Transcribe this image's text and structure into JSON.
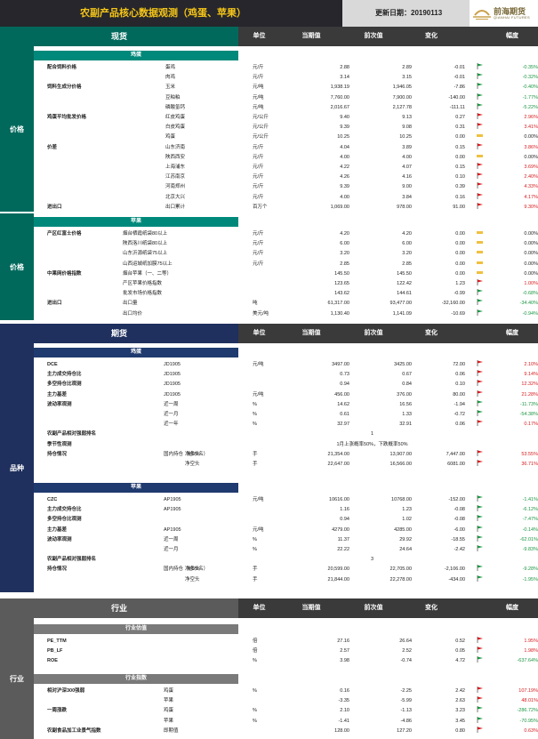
{
  "header": {
    "title": "农副产品核心数据观测（鸡蛋、苹果）",
    "date_label": "更新日期：",
    "date": "20190113",
    "logo_cn": "前海期货",
    "logo_en": "QIANHAI FUTURES"
  },
  "columns": {
    "unit": "单位",
    "current": "当期值",
    "previous": "前次值",
    "change": "变化",
    "pct": "幅度"
  },
  "colors": {
    "spot": "#00695c",
    "egg_band": "#00897b",
    "futures": "#1f2f5e",
    "fut_band": "#1f3a6e",
    "industry": "#5b5b5b",
    "ind_band": "#7a7a7a",
    "up": "#d7191c",
    "down": "#1a9641",
    "flat": "#f0c040"
  },
  "sections": {
    "spot": "现货",
    "futures": "期货",
    "industry": "行业"
  },
  "side": {
    "price1": "价格",
    "price2": "价格",
    "variety": "品种",
    "industry": "行业"
  },
  "bands": {
    "egg_spot": "鸡蛋",
    "apple_spot": "苹果",
    "egg_fut": "鸡蛋",
    "apple_fut": "苹果",
    "ind_val": "行业估值",
    "ind_idx": "行业指数"
  },
  "spot_egg": [
    {
      "label": "配合饲料价格",
      "sub": "蛋鸡",
      "unit": "元/斤",
      "cur": "2.88",
      "prev": "2.89",
      "chg": "-0.01",
      "pct": "-0.35%",
      "dir": "dn"
    },
    {
      "label": "",
      "sub": "肉鸡",
      "unit": "元/斤",
      "cur": "3.14",
      "prev": "3.15",
      "chg": "-0.01",
      "pct": "-0.32%",
      "dir": "dn"
    },
    {
      "label": "饲料生成分价格",
      "sub": "玉米",
      "unit": "元/吨",
      "cur": "1,938.19",
      "prev": "1,946.05",
      "chg": "-7.86",
      "pct": "-0.40%",
      "dir": "dn"
    },
    {
      "label": "",
      "sub": "豆粕粕",
      "unit": "元/吨",
      "cur": "7,760.00",
      "prev": "7,900.00",
      "chg": "-140.00",
      "pct": "-1.77%",
      "dir": "dn"
    },
    {
      "label": "",
      "sub": "磷酸氢钙",
      "unit": "元/吨",
      "cur": "2,016.67",
      "prev": "2,127.78",
      "chg": "-111.11",
      "pct": "-5.22%",
      "dir": "dn"
    },
    {
      "label": "鸡蛋平均批发价格",
      "sub": "红皮鸡蛋",
      "unit": "元/公斤",
      "cur": "9.40",
      "prev": "9.13",
      "chg": "0.27",
      "pct": "2.96%",
      "dir": "up"
    },
    {
      "label": "",
      "sub": "白皮鸡蛋",
      "unit": "元/公斤",
      "cur": "9.39",
      "prev": "9.08",
      "chg": "0.31",
      "pct": "3.41%",
      "dir": "up"
    },
    {
      "label": "",
      "sub": "鸡蛋",
      "unit": "元/公斤",
      "cur": "10.25",
      "prev": "10.25",
      "chg": "0.00",
      "pct": "0.00%",
      "dir": "fl"
    },
    {
      "label": "价差",
      "sub": "山东济南",
      "unit": "元/斤",
      "cur": "4.04",
      "prev": "3.89",
      "chg": "0.15",
      "pct": "3.86%",
      "dir": "up"
    },
    {
      "label": "",
      "sub": "陕西西安",
      "unit": "元/斤",
      "cur": "4.00",
      "prev": "4.00",
      "chg": "0.00",
      "pct": "0.00%",
      "dir": "fl"
    },
    {
      "label": "",
      "sub": "上海浦东",
      "unit": "元/斤",
      "cur": "4.22",
      "prev": "4.07",
      "chg": "0.15",
      "pct": "3.69%",
      "dir": "up"
    },
    {
      "label": "",
      "sub": "江苏南京",
      "unit": "元/斤",
      "cur": "4.26",
      "prev": "4.16",
      "chg": "0.10",
      "pct": "2.40%",
      "dir": "up"
    },
    {
      "label": "",
      "sub": "河南郑州",
      "unit": "元/斤",
      "cur": "9.39",
      "prev": "9.00",
      "chg": "0.39",
      "pct": "4.33%",
      "dir": "up"
    },
    {
      "label": "",
      "sub": "北京大兴",
      "unit": "元/斤",
      "cur": "4.00",
      "prev": "3.84",
      "chg": "0.16",
      "pct": "4.17%",
      "dir": "up"
    },
    {
      "label": "进出口",
      "sub": "出口累计",
      "unit": "百万个",
      "cur": "1,069.00",
      "prev": "978.00",
      "chg": "91.00",
      "pct": "9.30%",
      "dir": "up"
    }
  ],
  "spot_apple": [
    {
      "label": "产区红富士价格",
      "sub": "烟台栖霞纸袋80以上",
      "unit": "元/斤",
      "cur": "4.20",
      "prev": "4.20",
      "chg": "0.00",
      "pct": "0.00%",
      "dir": "fl"
    },
    {
      "label": "",
      "sub": "陕西洛川纸袋80以上",
      "unit": "元/斤",
      "cur": "6.00",
      "prev": "6.00",
      "chg": "0.00",
      "pct": "0.00%",
      "dir": "fl"
    },
    {
      "label": "",
      "sub": "山东沂源纸袋75以上",
      "unit": "元/斤",
      "cur": "3.20",
      "prev": "3.20",
      "chg": "0.00",
      "pct": "0.00%",
      "dir": "fl"
    },
    {
      "label": "",
      "sub": "山西运城纸加膜75以上",
      "unit": "元/斤",
      "cur": "2.85",
      "prev": "2.85",
      "chg": "0.00",
      "pct": "0.00%",
      "dir": "fl"
    },
    {
      "label": "中果网价格指数",
      "sub": "烟台苹果（一、二等）",
      "unit": "",
      "cur": "145.50",
      "prev": "145.50",
      "chg": "0.00",
      "pct": "0.00%",
      "dir": "fl"
    },
    {
      "label": "",
      "sub": "产区苹果价格指数",
      "unit": "",
      "cur": "123.65",
      "prev": "122.42",
      "chg": "1.23",
      "pct": "1.00%",
      "dir": "up"
    },
    {
      "label": "",
      "sub": "批发市场价格指数",
      "unit": "",
      "cur": "143.62",
      "prev": "144.61",
      "chg": "-0.99",
      "pct": "-0.68%",
      "dir": "dn"
    },
    {
      "label": "进出口",
      "sub": "出口量",
      "unit": "吨",
      "cur": "61,317.00",
      "prev": "93,477.00",
      "chg": "-32,160.00",
      "pct": "-34.40%",
      "dir": "dn"
    },
    {
      "label": "",
      "sub": "出口均价",
      "unit": "美元/吨",
      "cur": "1,130.40",
      "prev": "1,141.09",
      "chg": "-10.69",
      "pct": "-0.94%",
      "dir": "dn"
    }
  ],
  "fut_egg": [
    {
      "label": "DCE",
      "sub": "JD1905",
      "unit": "元/吨",
      "cur": "3497.00",
      "prev": "3425.00",
      "chg": "72.00",
      "pct": "2.10%",
      "dir": "up"
    },
    {
      "label": "主力成交持仓比",
      "sub": "JD1905",
      "unit": "",
      "cur": "0.73",
      "prev": "0.67",
      "chg": "0.06",
      "pct": "9.14%",
      "dir": "up"
    },
    {
      "label": "多空持仓比观测",
      "sub": "JD1905",
      "unit": "",
      "cur": "0.94",
      "prev": "0.84",
      "chg": "0.10",
      "pct": "12.32%",
      "dir": "up"
    },
    {
      "label": "主力基差",
      "sub": "JD1905",
      "unit": "元/吨",
      "cur": "456.00",
      "prev": "376.00",
      "chg": "80.00",
      "pct": "21.28%",
      "dir": "up"
    },
    {
      "label": "波动率观测",
      "sub": "近一周",
      "unit": "%",
      "cur": "14.62",
      "prev": "16.56",
      "chg": "-1.94",
      "pct": "-11.73%",
      "dir": "dn"
    },
    {
      "label": "",
      "sub": "近一月",
      "unit": "%",
      "cur": "0.61",
      "prev": "1.33",
      "chg": "-0.72",
      "pct": "-54.38%",
      "dir": "dn"
    },
    {
      "label": "",
      "sub": "近一年",
      "unit": "%",
      "cur": "32.97",
      "prev": "32.91",
      "chg": "0.06",
      "pct": "0.17%",
      "dir": "up"
    },
    {
      "label": "农副产品相对强弱排名",
      "full": "1"
    },
    {
      "label": "季节性观测",
      "full": "1月上涨概率50%，下跌概率50%"
    },
    {
      "label": "持仓情况",
      "sub": "国内持仓（前20名）",
      "sub2": "净多头",
      "unit": "手",
      "cur": "21,354.00",
      "prev": "13,907.00",
      "chg": "7,447.00",
      "pct": "53.55%",
      "dir": "up"
    },
    {
      "label": "",
      "sub": "",
      "sub2": "净空头",
      "unit": "手",
      "cur": "22,647.00",
      "prev": "16,566.00",
      "chg": "6081.00",
      "pct": "36.71%",
      "dir": "up"
    }
  ],
  "fut_apple": [
    {
      "label": "CZC",
      "sub": "AP1905",
      "unit": "元/吨",
      "cur": "10616.00",
      "prev": "10768.00",
      "chg": "-152.00",
      "pct": "-1.41%",
      "dir": "dn"
    },
    {
      "label": "主力成交持仓比",
      "sub": "AP1905",
      "unit": "",
      "cur": "1.16",
      "prev": "1.23",
      "chg": "-0.08",
      "pct": "-6.12%",
      "dir": "dn"
    },
    {
      "label": "多空持仓比观测",
      "sub": "",
      "unit": "",
      "cur": "0.94",
      "prev": "1.02",
      "chg": "-0.08",
      "pct": "-7.47%",
      "dir": "dn"
    },
    {
      "label": "主力基差",
      "sub": "AP1905",
      "unit": "元/吨",
      "cur": "4279.00",
      "prev": "4285.00",
      "chg": "-6.00",
      "pct": "-0.14%",
      "dir": "dn"
    },
    {
      "label": "波动率观测",
      "sub": "近一周",
      "unit": "%",
      "cur": "11.37",
      "prev": "29.92",
      "chg": "-18.55",
      "pct": "-62.01%",
      "dir": "dn"
    },
    {
      "label": "",
      "sub": "近一月",
      "unit": "%",
      "cur": "22.22",
      "prev": "24.64",
      "chg": "-2.42",
      "pct": "-9.83%",
      "dir": "dn"
    },
    {
      "label": "农副产品相对强弱排名",
      "full": "3"
    },
    {
      "label": "持仓情况",
      "sub": "国内持仓（前20名）",
      "sub2": "净多头",
      "unit": "手",
      "cur": "20,599.00",
      "prev": "22,705.00",
      "chg": "-2,106.00",
      "pct": "-9.28%",
      "dir": "dn"
    },
    {
      "label": "",
      "sub": "",
      "sub2": "净空头",
      "unit": "手",
      "cur": "21,844.00",
      "prev": "22,278.00",
      "chg": "-434.00",
      "pct": "-1.95%",
      "dir": "dn"
    }
  ],
  "ind_val": [
    {
      "label": "PE_TTM",
      "sub": "",
      "unit": "倍",
      "cur": "27.16",
      "prev": "26.64",
      "chg": "0.52",
      "pct": "1.95%",
      "dir": "up"
    },
    {
      "label": "PB_LF",
      "sub": "",
      "unit": "倍",
      "cur": "2.57",
      "prev": "2.52",
      "chg": "0.05",
      "pct": "1.98%",
      "dir": "up"
    },
    {
      "label": "ROE",
      "sub": "",
      "unit": "%",
      "cur": "3.98",
      "prev": "-0.74",
      "chg": "4.72",
      "pct": "-637.64%",
      "dir": "dn"
    }
  ],
  "ind_idx": [
    {
      "label": "相对沪深300强弱",
      "sub": "鸡蛋",
      "unit": "%",
      "cur": "0.16",
      "prev": "-2.25",
      "chg": "2.42",
      "pct": "107.19%",
      "dir": "up"
    },
    {
      "label": "",
      "sub": "苹果",
      "unit": "",
      "cur": "-3.35",
      "prev": "-5.99",
      "chg": "2.63",
      "pct": "48.01%",
      "dir": "up"
    },
    {
      "label": "一周涨跌",
      "sub": "鸡蛋",
      "unit": "%",
      "cur": "2.10",
      "prev": "-1.13",
      "chg": "3.23",
      "pct": "-286.72%",
      "dir": "dn"
    },
    {
      "label": "",
      "sub": "苹果",
      "unit": "%",
      "cur": "-1.41",
      "prev": "-4.86",
      "chg": "3.45",
      "pct": "-70.95%",
      "dir": "dn"
    },
    {
      "label": "农副食品加工业景气指数",
      "sub": "即期值",
      "unit": "",
      "cur": "128.00",
      "prev": "127.20",
      "chg": "0.80",
      "pct": "0.63%",
      "dir": "up"
    }
  ]
}
